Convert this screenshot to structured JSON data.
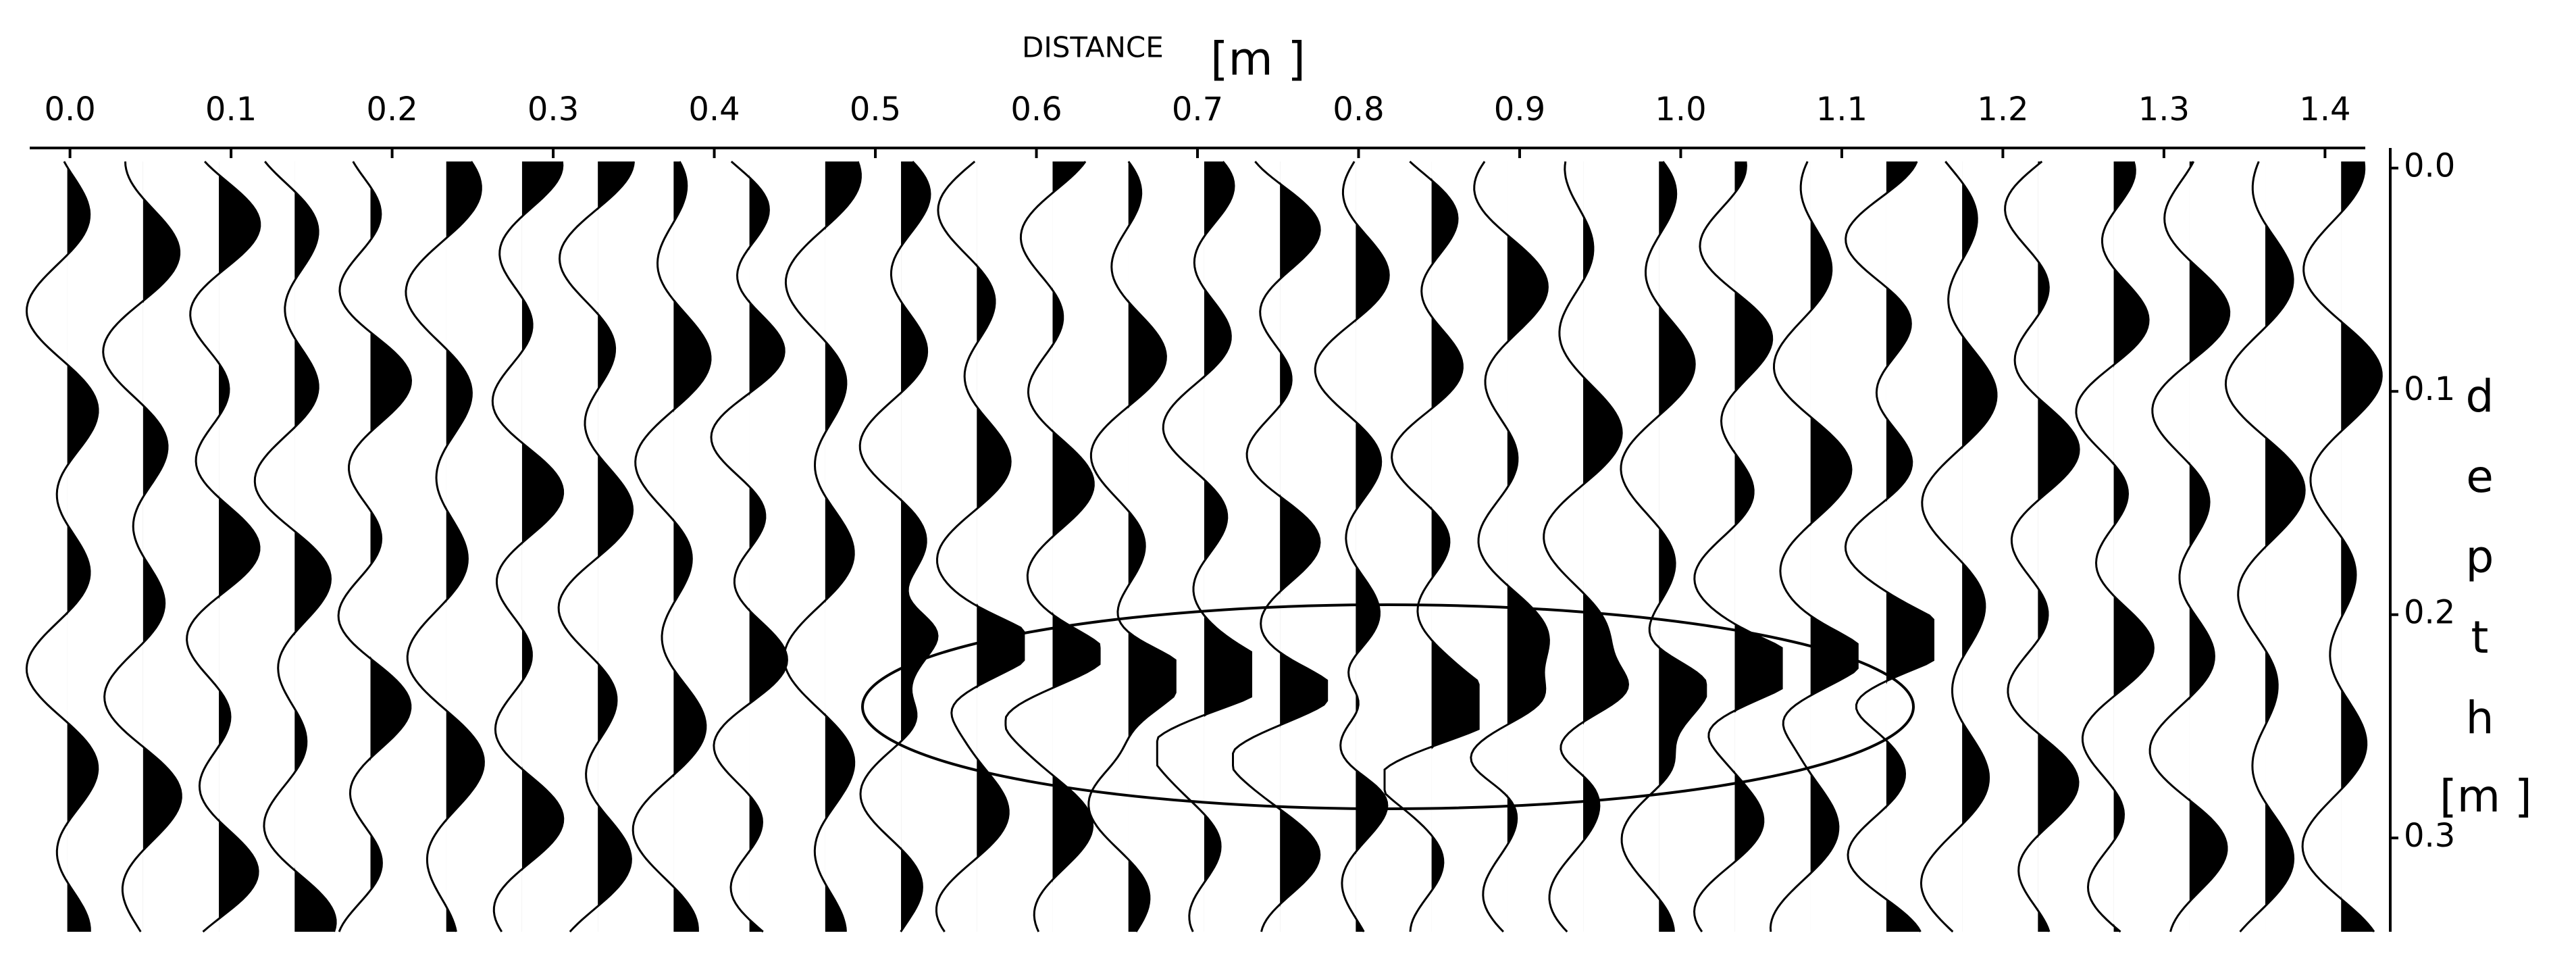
{
  "chart_data": {
    "type": "wiggle",
    "xlabel": "DISTANCE",
    "xunit": "[m ]",
    "ylabel": "depth",
    "yunit": "[m ]",
    "xlim": [
      -0.025,
      1.425
    ],
    "ylim": [
      -0.009,
      0.342
    ],
    "xticks": [
      {
        "value": 0,
        "label": "0.0"
      },
      0.1,
      0.2,
      0.3,
      0.4,
      0.5,
      0.6,
      0.7,
      0.8,
      0.9,
      {
        "value": 1,
        "label": "1.0"
      },
      1.1,
      1.2,
      1.3,
      1.4
    ],
    "yticks": [
      {
        "value": 0,
        "label": "0.0"
      },
      0.1,
      0.2,
      0.3
    ]
  }
}
